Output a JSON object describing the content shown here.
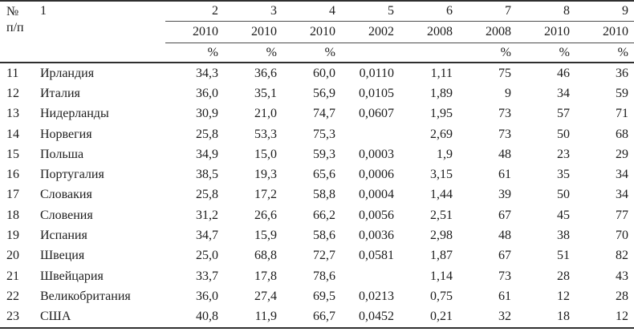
{
  "table": {
    "header": {
      "rownum_label_line1": "№",
      "rownum_label_line2": "п/п",
      "country_col_label": "1",
      "column_numbers": [
        "2",
        "3",
        "4",
        "5",
        "6",
        "7",
        "8",
        "9"
      ],
      "years": [
        "2010",
        "2010",
        "2010",
        "2002",
        "2008",
        "2008",
        "2010",
        "2010"
      ],
      "units": [
        "%",
        "%",
        "%",
        "",
        "",
        "%",
        "%",
        "%"
      ]
    },
    "rows": [
      {
        "num": "11",
        "country": "Ирландия",
        "values": [
          "34,3",
          "36,6",
          "60,0",
          "0,0110",
          "1,11",
          "75",
          "46",
          "36"
        ]
      },
      {
        "num": "12",
        "country": "Италия",
        "values": [
          "36,0",
          "35,1",
          "56,9",
          "0,0105",
          "1,89",
          "9",
          "34",
          "59"
        ]
      },
      {
        "num": "13",
        "country": "Нидерланды",
        "values": [
          "30,9",
          "21,0",
          "74,7",
          "0,0607",
          "1,95",
          "73",
          "57",
          "71"
        ]
      },
      {
        "num": "14",
        "country": "Норвегия",
        "values": [
          "25,8",
          "53,3",
          "75,3",
          "",
          "2,69",
          "73",
          "50",
          "68"
        ]
      },
      {
        "num": "15",
        "country": "Польша",
        "values": [
          "34,9",
          "15,0",
          "59,3",
          "0,0003",
          "1,9",
          "48",
          "23",
          "29"
        ]
      },
      {
        "num": "16",
        "country": "Португалия",
        "values": [
          "38,5",
          "19,3",
          "65,6",
          "0,0006",
          "3,15",
          "61",
          "35",
          "34"
        ]
      },
      {
        "num": "17",
        "country": "Словакия",
        "values": [
          "25,8",
          "17,2",
          "58,8",
          "0,0004",
          "1,44",
          "39",
          "50",
          "34"
        ]
      },
      {
        "num": "18",
        "country": "Словения",
        "values": [
          "31,2",
          "26,6",
          "66,2",
          "0,0056",
          "2,51",
          "67",
          "45",
          "77"
        ]
      },
      {
        "num": "19",
        "country": "Испания",
        "values": [
          "34,7",
          "15,9",
          "58,6",
          "0,0036",
          "2,98",
          "48",
          "38",
          "70"
        ]
      },
      {
        "num": "20",
        "country": "Швеция",
        "values": [
          "25,0",
          "68,8",
          "72,7",
          "0,0581",
          "1,87",
          "67",
          "51",
          "82"
        ]
      },
      {
        "num": "21",
        "country": "Швейцария",
        "values": [
          "33,7",
          "17,8",
          "78,6",
          "",
          "1,14",
          "73",
          "28",
          "43"
        ]
      },
      {
        "num": "22",
        "country": "Великобритания",
        "values": [
          "36,0",
          "27,4",
          "69,5",
          "0,0213",
          "0,75",
          "61",
          "12",
          "28"
        ]
      },
      {
        "num": "23",
        "country": "США",
        "values": [
          "40,8",
          "11,9",
          "66,7",
          "0,0452",
          "0,21",
          "32",
          "18",
          "12"
        ]
      }
    ]
  }
}
